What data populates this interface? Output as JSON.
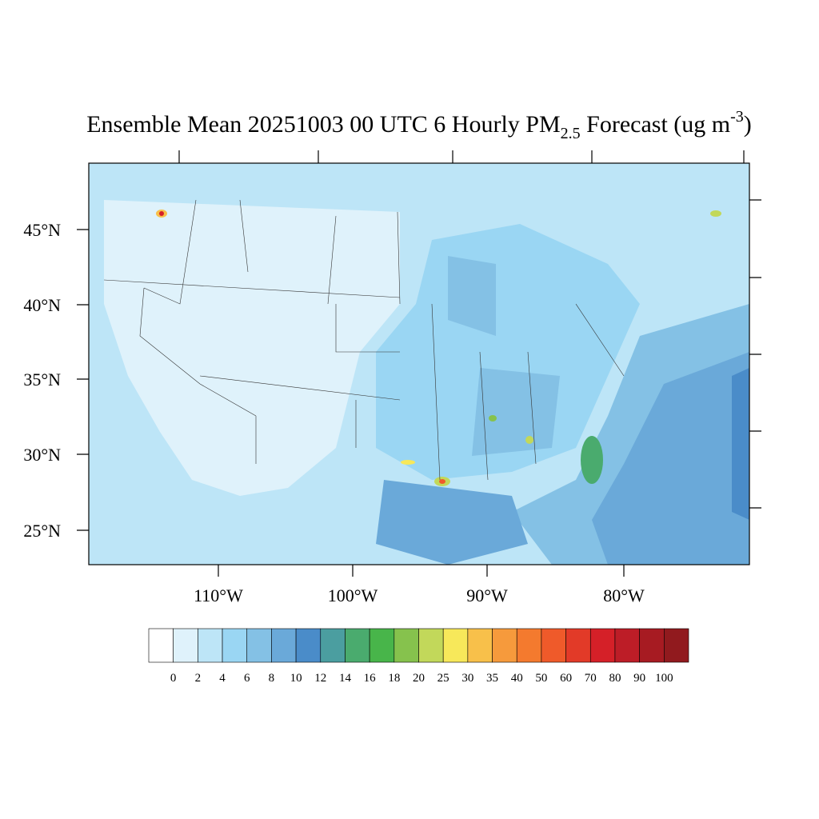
{
  "title": {
    "main": "Ensemble Mean 20251003 00 UTC 6 Hourly PM",
    "subscript": "2.5",
    "after": " Forecast (ug m",
    "superscript": "-3",
    "end": ")"
  },
  "map": {
    "lat_labels": [
      "45°N",
      "40°N",
      "35°N",
      "30°N",
      "25°N"
    ],
    "lon_labels": [
      "110°W",
      "100°W",
      "90°W",
      "80°W"
    ]
  },
  "colorbar": {
    "colors": [
      "#ffffff",
      "#dff2fb",
      "#bde5f7",
      "#9ad6f3",
      "#84c1e5",
      "#6aa9d9",
      "#4a8cc9",
      "#4b9ea0",
      "#4aab6e",
      "#48b54a",
      "#86c24d",
      "#c2d85a",
      "#f7e85a",
      "#f8c04a",
      "#f69a3c",
      "#f47a2e",
      "#ef5a2a",
      "#e23a28",
      "#d52028",
      "#bd1d27",
      "#a71b22",
      "#911a1e"
    ],
    "labels": [
      0,
      2,
      4,
      6,
      8,
      10,
      12,
      14,
      16,
      18,
      20,
      25,
      30,
      35,
      40,
      50,
      60,
      70,
      80,
      90,
      100
    ]
  }
}
